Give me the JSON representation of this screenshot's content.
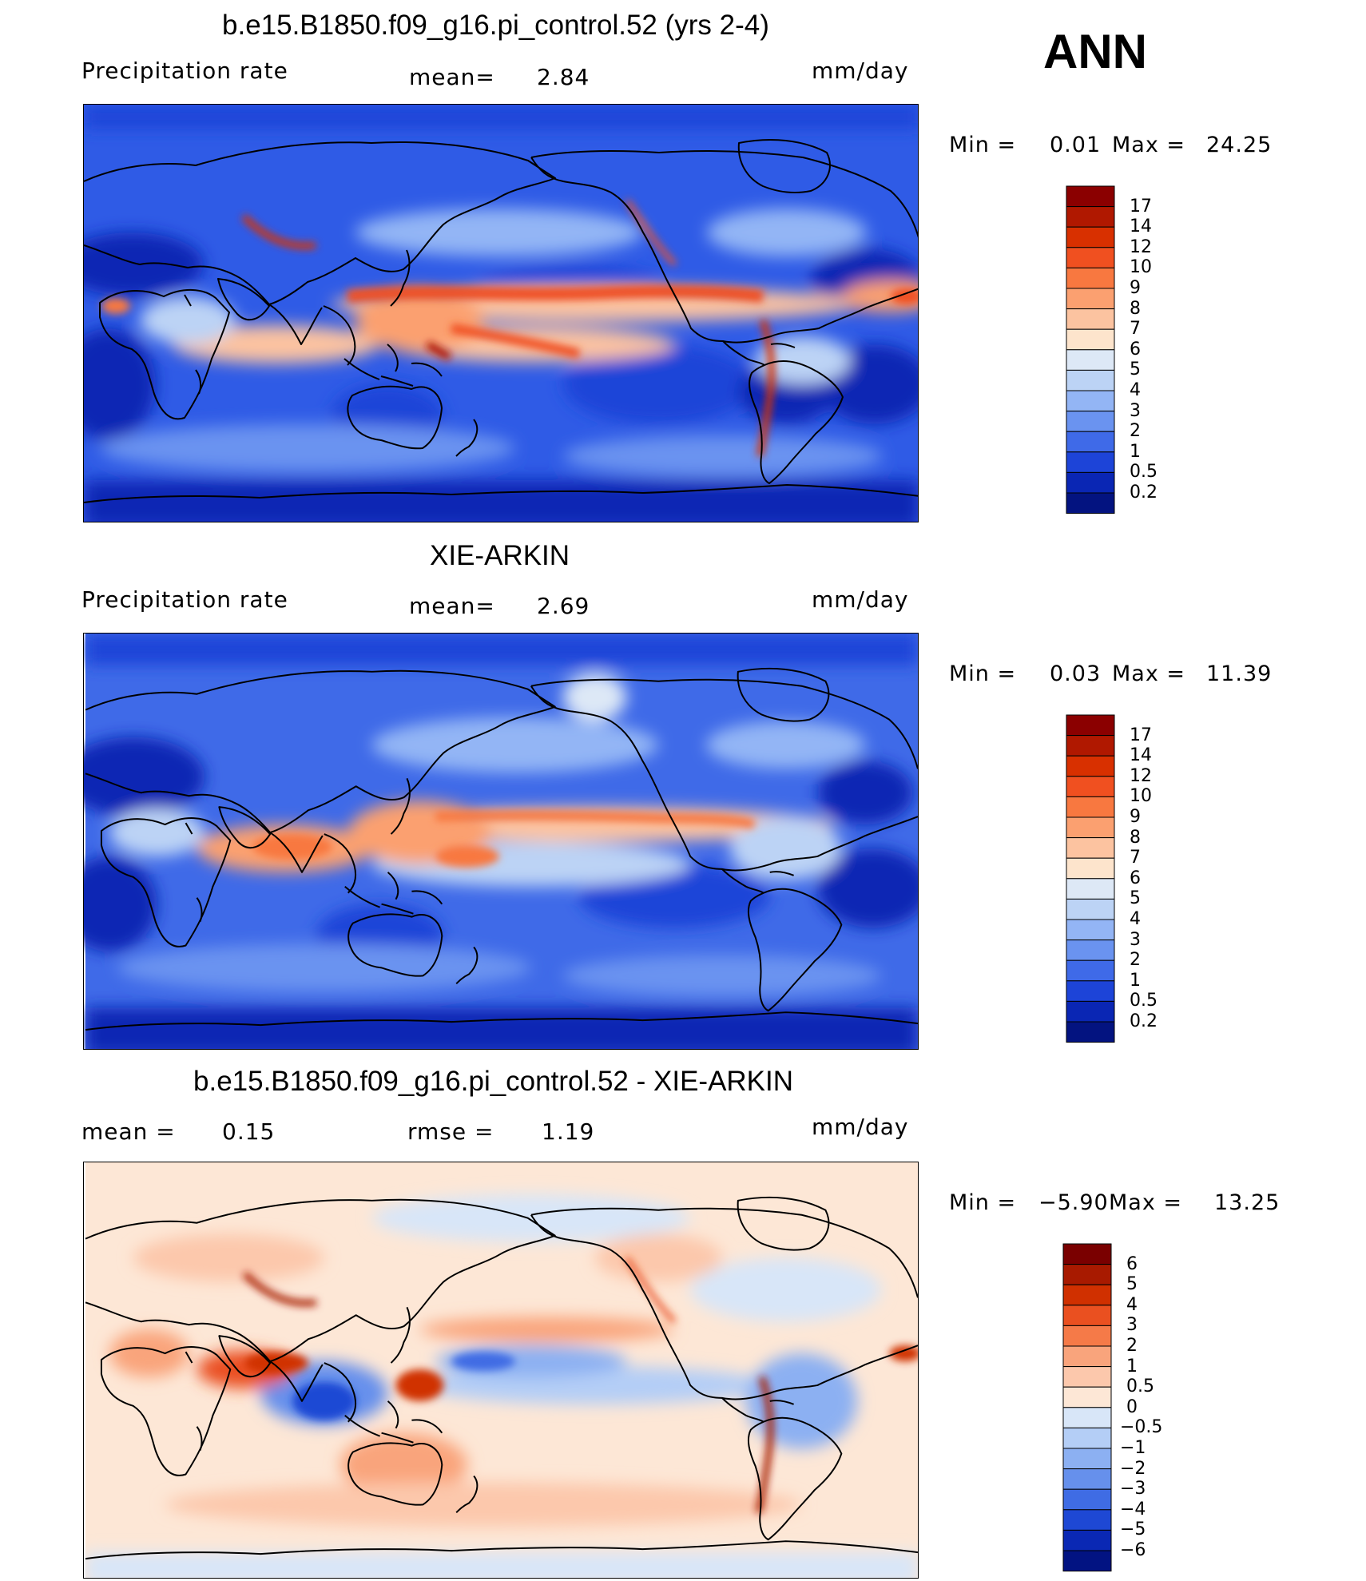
{
  "season": "ANN",
  "panels": [
    {
      "id": "model",
      "title": "b.e15.B1850.f09_g16.pi_control.52 (yrs 2-4)",
      "left_label": "Precipitation  rate",
      "center_label": "mean=",
      "center_value": "2.84",
      "units": "mm/day",
      "min_label": "Min  =",
      "min_value": "0.01",
      "max_label": "Max  =",
      "max_value": "24.25",
      "colorbar_labels": [
        "17",
        "14",
        "12",
        "10",
        "9",
        "8",
        "7",
        "6",
        "5",
        "4",
        "3",
        "2",
        "1",
        "0.5",
        "0.2"
      ],
      "colorbar_colors": [
        "#8b0000",
        "#b01800",
        "#d83000",
        "#f05020",
        "#f87840",
        "#fba070",
        "#fcc3a0",
        "#fde4cc",
        "#dde8f6",
        "#bcd3f5",
        "#93b5f5",
        "#6a93f0",
        "#3f6ae8",
        "#1d44d8",
        "#0a26b4",
        "#031380"
      ]
    },
    {
      "id": "obs",
      "title": "XIE-ARKIN",
      "left_label": "Precipitation  rate",
      "center_label": "mean=",
      "center_value": "2.69",
      "units": "mm/day",
      "min_label": "Min  =",
      "min_value": "0.03",
      "max_label": "Max  =",
      "max_value": "11.39",
      "colorbar_labels": [
        "17",
        "14",
        "12",
        "10",
        "9",
        "8",
        "7",
        "6",
        "5",
        "4",
        "3",
        "2",
        "1",
        "0.5",
        "0.2"
      ],
      "colorbar_colors": [
        "#8b0000",
        "#b01800",
        "#d83000",
        "#f05020",
        "#f87840",
        "#fba070",
        "#fcc3a0",
        "#fde4cc",
        "#dde8f6",
        "#bcd3f5",
        "#93b5f5",
        "#6a93f0",
        "#3f6ae8",
        "#1d44d8",
        "#0a26b4",
        "#031380"
      ]
    },
    {
      "id": "diff",
      "title": "b.e15.B1850.f09_g16.pi_control.52 - XIE-ARKIN",
      "left_label": "mean  =",
      "left_value": "0.15",
      "center_label": "rmse  =",
      "center_value": "1.19",
      "units": "mm/day",
      "min_label": "Min  =",
      "min_value": "−5.90",
      "max_label": "Max  =",
      "max_value": "13.25",
      "colorbar_labels": [
        "6",
        "5",
        "4",
        "3",
        "2",
        "1",
        "0.5",
        "0",
        "−0.5",
        "−1",
        "−2",
        "−3",
        "−4",
        "−5",
        "−6"
      ],
      "colorbar_colors": [
        "#7a0000",
        "#a81a00",
        "#d03000",
        "#ea5020",
        "#f57a48",
        "#f9a47c",
        "#fcc8ac",
        "#fde7d6",
        "#d8e6f8",
        "#b4cef6",
        "#8cb0f2",
        "#6690ec",
        "#3f6ce4",
        "#1e48d4",
        "#0a28b4",
        "#021382"
      ]
    }
  ],
  "chart_data": [
    {
      "type": "heatmap",
      "title": "b.e15.B1850.f09_g16.pi_control.52 (yrs 2-4)",
      "variable": "Precipitation  rate",
      "units": "mm/day",
      "mean": 2.84,
      "min": 0.01,
      "max": 24.25,
      "contour_levels": [
        0.2,
        0.5,
        1,
        2,
        3,
        4,
        5,
        6,
        7,
        8,
        9,
        10,
        12,
        14,
        17
      ],
      "features": [
        "ITCZ band across Pacific",
        "SPCZ",
        "Andes maximum",
        "Himalaya maximum"
      ]
    },
    {
      "type": "heatmap",
      "title": "XIE-ARKIN",
      "variable": "Precipitation  rate",
      "units": "mm/day",
      "mean": 2.69,
      "min": 0.03,
      "max": 11.39,
      "contour_levels": [
        0.2,
        0.5,
        1,
        2,
        3,
        4,
        5,
        6,
        7,
        8,
        9,
        10,
        12,
        14,
        17
      ]
    },
    {
      "type": "heatmap",
      "title": "b.e15.B1850.f09_g16.pi_control.52 - XIE-ARKIN",
      "units": "mm/day",
      "mean": 0.15,
      "rmse": 1.19,
      "min": -5.9,
      "max": 13.25,
      "contour_levels": [
        -6,
        -5,
        -4,
        -3,
        -2,
        -1,
        -0.5,
        0,
        0.5,
        1,
        2,
        3,
        4,
        5,
        6
      ]
    }
  ]
}
